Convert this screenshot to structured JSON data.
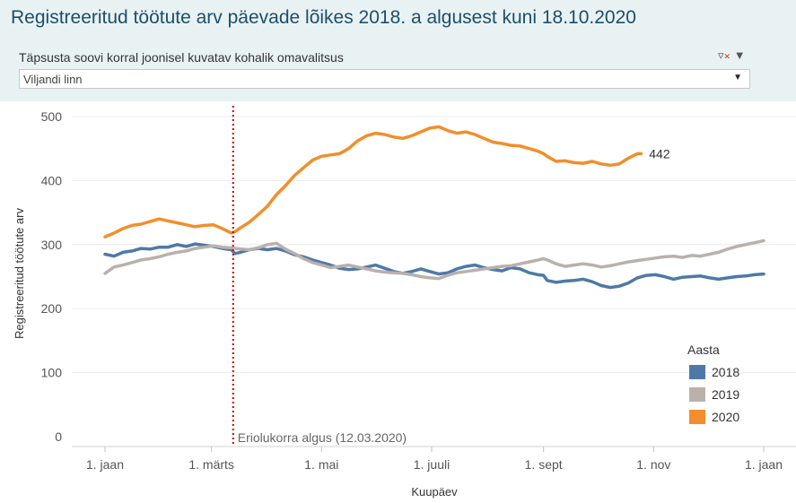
{
  "title": "Registreeritud töötute arv päevade lõikes 2018. a algusest kuni 18.10.2020",
  "filter": {
    "label": "Täpsusta soovi korral  joonisel kuvatav kohalik omavalitsus",
    "selected": "Viljandi linn",
    "filter_icon": "clear-filter-icon",
    "menu_icon": "dropdown-arrow-icon"
  },
  "chart_data": {
    "type": "line",
    "xlabel": "Kuupäev",
    "ylabel": "Registreeritud töötute arv",
    "x_ticks": [
      "1. jaan",
      "1. märts",
      "1. mai",
      "1. juuli",
      "1. sept",
      "1. nov",
      "1. jaan"
    ],
    "x_tick_days": [
      0,
      59,
      120,
      181,
      243,
      304,
      365
    ],
    "x_unit": "day of year",
    "ylim": [
      0,
      500
    ],
    "y_ticks": [
      0,
      100,
      200,
      300,
      400,
      500
    ],
    "grid": "horizontal",
    "legend_title": "Aasta",
    "legend_position": "bottom-right",
    "annotation": {
      "text": "Eriolukorra algus (12.03.2020)",
      "x": 71,
      "color": "#cc0000",
      "style": "dotted"
    },
    "end_label": "442",
    "series": [
      {
        "name": "2018",
        "color": "#4e79a7",
        "points": [
          [
            0,
            285
          ],
          [
            5,
            282
          ],
          [
            10,
            288
          ],
          [
            15,
            290
          ],
          [
            20,
            294
          ],
          [
            25,
            293
          ],
          [
            30,
            296
          ],
          [
            35,
            296
          ],
          [
            40,
            300
          ],
          [
            45,
            297
          ],
          [
            50,
            301
          ],
          [
            55,
            299
          ],
          [
            60,
            297
          ],
          [
            65,
            294
          ],
          [
            70,
            292
          ],
          [
            72,
            286
          ],
          [
            75,
            288
          ],
          [
            80,
            292
          ],
          [
            85,
            294
          ],
          [
            90,
            292
          ],
          [
            95,
            294
          ],
          [
            100,
            290
          ],
          [
            105,
            284
          ],
          [
            110,
            281
          ],
          [
            115,
            276
          ],
          [
            120,
            272
          ],
          [
            125,
            268
          ],
          [
            130,
            263
          ],
          [
            135,
            261
          ],
          [
            140,
            262
          ],
          [
            145,
            265
          ],
          [
            150,
            268
          ],
          [
            155,
            263
          ],
          [
            160,
            258
          ],
          [
            165,
            255
          ],
          [
            170,
            258
          ],
          [
            175,
            262
          ],
          [
            180,
            258
          ],
          [
            185,
            254
          ],
          [
            190,
            256
          ],
          [
            195,
            262
          ],
          [
            200,
            266
          ],
          [
            205,
            268
          ],
          [
            210,
            264
          ],
          [
            215,
            261
          ],
          [
            220,
            259
          ],
          [
            225,
            264
          ],
          [
            230,
            262
          ],
          [
            235,
            256
          ],
          [
            240,
            253
          ],
          [
            243,
            252
          ],
          [
            245,
            244
          ],
          [
            250,
            241
          ],
          [
            255,
            243
          ],
          [
            260,
            244
          ],
          [
            265,
            246
          ],
          [
            270,
            242
          ],
          [
            275,
            236
          ],
          [
            280,
            233
          ],
          [
            285,
            235
          ],
          [
            290,
            240
          ],
          [
            295,
            248
          ],
          [
            300,
            252
          ],
          [
            305,
            253
          ],
          [
            310,
            250
          ],
          [
            315,
            246
          ],
          [
            320,
            249
          ],
          [
            325,
            250
          ],
          [
            330,
            251
          ],
          [
            335,
            248
          ],
          [
            340,
            246
          ],
          [
            345,
            248
          ],
          [
            350,
            250
          ],
          [
            355,
            251
          ],
          [
            360,
            253
          ],
          [
            365,
            254
          ]
        ]
      },
      {
        "name": "2019",
        "color": "#bab0ac",
        "points": [
          [
            0,
            255
          ],
          [
            5,
            265
          ],
          [
            10,
            268
          ],
          [
            15,
            272
          ],
          [
            20,
            276
          ],
          [
            25,
            278
          ],
          [
            30,
            281
          ],
          [
            35,
            285
          ],
          [
            40,
            288
          ],
          [
            45,
            290
          ],
          [
            50,
            294
          ],
          [
            55,
            296
          ],
          [
            60,
            298
          ],
          [
            65,
            296
          ],
          [
            70,
            295
          ],
          [
            75,
            293
          ],
          [
            80,
            292
          ],
          [
            85,
            295
          ],
          [
            90,
            300
          ],
          [
            95,
            302
          ],
          [
            100,
            293
          ],
          [
            105,
            286
          ],
          [
            110,
            278
          ],
          [
            115,
            272
          ],
          [
            120,
            268
          ],
          [
            125,
            264
          ],
          [
            130,
            266
          ],
          [
            135,
            268
          ],
          [
            140,
            265
          ],
          [
            145,
            262
          ],
          [
            150,
            259
          ],
          [
            155,
            257
          ],
          [
            160,
            256
          ],
          [
            165,
            255
          ],
          [
            170,
            253
          ],
          [
            175,
            250
          ],
          [
            180,
            248
          ],
          [
            185,
            247
          ],
          [
            190,
            252
          ],
          [
            195,
            256
          ],
          [
            200,
            258
          ],
          [
            205,
            260
          ],
          [
            210,
            262
          ],
          [
            215,
            264
          ],
          [
            220,
            266
          ],
          [
            225,
            267
          ],
          [
            230,
            270
          ],
          [
            235,
            273
          ],
          [
            240,
            276
          ],
          [
            243,
            278
          ],
          [
            245,
            276
          ],
          [
            250,
            270
          ],
          [
            255,
            266
          ],
          [
            260,
            268
          ],
          [
            265,
            270
          ],
          [
            270,
            268
          ],
          [
            275,
            265
          ],
          [
            280,
            267
          ],
          [
            285,
            270
          ],
          [
            290,
            273
          ],
          [
            295,
            275
          ],
          [
            300,
            277
          ],
          [
            305,
            279
          ],
          [
            310,
            281
          ],
          [
            315,
            282
          ],
          [
            320,
            280
          ],
          [
            325,
            283
          ],
          [
            330,
            282
          ],
          [
            335,
            285
          ],
          [
            340,
            288
          ],
          [
            345,
            293
          ],
          [
            350,
            297
          ],
          [
            355,
            300
          ],
          [
            360,
            303
          ],
          [
            365,
            306
          ]
        ]
      },
      {
        "name": "2020",
        "color": "#f28e2b",
        "points": [
          [
            0,
            312
          ],
          [
            5,
            318
          ],
          [
            10,
            325
          ],
          [
            15,
            330
          ],
          [
            20,
            332
          ],
          [
            25,
            336
          ],
          [
            30,
            340
          ],
          [
            35,
            337
          ],
          [
            40,
            334
          ],
          [
            45,
            331
          ],
          [
            50,
            328
          ],
          [
            55,
            330
          ],
          [
            60,
            331
          ],
          [
            65,
            325
          ],
          [
            70,
            318
          ],
          [
            72,
            320
          ],
          [
            75,
            326
          ],
          [
            80,
            335
          ],
          [
            85,
            347
          ],
          [
            90,
            360
          ],
          [
            95,
            378
          ],
          [
            100,
            392
          ],
          [
            105,
            408
          ],
          [
            110,
            420
          ],
          [
            115,
            432
          ],
          [
            120,
            438
          ],
          [
            125,
            440
          ],
          [
            130,
            442
          ],
          [
            135,
            450
          ],
          [
            140,
            462
          ],
          [
            145,
            470
          ],
          [
            150,
            474
          ],
          [
            155,
            472
          ],
          [
            160,
            468
          ],
          [
            165,
            466
          ],
          [
            170,
            470
          ],
          [
            175,
            476
          ],
          [
            180,
            482
          ],
          [
            185,
            484
          ],
          [
            190,
            478
          ],
          [
            195,
            474
          ],
          [
            200,
            476
          ],
          [
            205,
            472
          ],
          [
            210,
            466
          ],
          [
            215,
            460
          ],
          [
            220,
            458
          ],
          [
            225,
            455
          ],
          [
            230,
            454
          ],
          [
            235,
            450
          ],
          [
            240,
            446
          ],
          [
            243,
            442
          ],
          [
            245,
            438
          ],
          [
            250,
            430
          ],
          [
            255,
            431
          ],
          [
            260,
            428
          ],
          [
            265,
            427
          ],
          [
            270,
            430
          ],
          [
            275,
            426
          ],
          [
            280,
            424
          ],
          [
            285,
            426
          ],
          [
            290,
            435
          ],
          [
            295,
            442
          ],
          [
            297,
            442
          ]
        ]
      }
    ]
  }
}
